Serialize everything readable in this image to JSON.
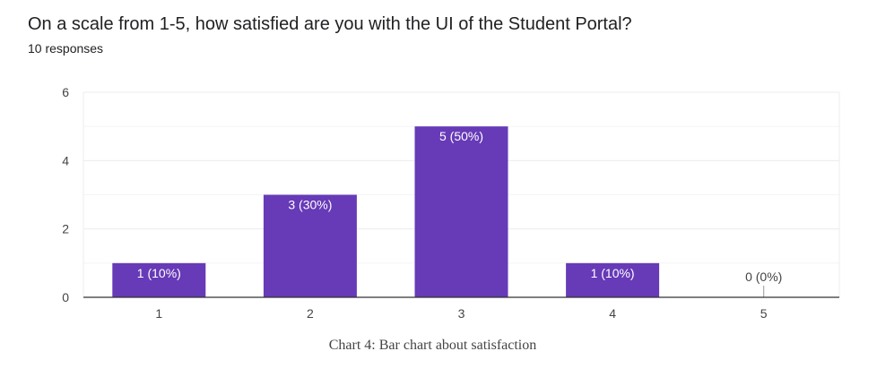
{
  "question": {
    "title": "On a scale from 1-5, how satisfied are you with the UI of the Student Portal?",
    "responses": "10 responses"
  },
  "caption": "Chart 4: Bar chart about satisfaction",
  "colors": {
    "bar": "#673ab7",
    "grid": "#ececec",
    "axis": "#333333",
    "tick_text": "#444444",
    "label_inside": "#ffffff",
    "label_outside": "#444444"
  },
  "chart_data": {
    "type": "bar",
    "categories": [
      "1",
      "2",
      "3",
      "4",
      "5"
    ],
    "values": [
      1,
      3,
      5,
      1,
      0
    ],
    "data_labels": [
      "1 (10%)",
      "3 (30%)",
      "5 (50%)",
      "1 (10%)",
      "0 (0%)"
    ],
    "ylim": [
      0,
      6
    ],
    "yticks": [
      0,
      2,
      4,
      6
    ],
    "minor_gridlines": [
      1,
      3,
      5
    ],
    "grid": true,
    "legend": "none"
  }
}
